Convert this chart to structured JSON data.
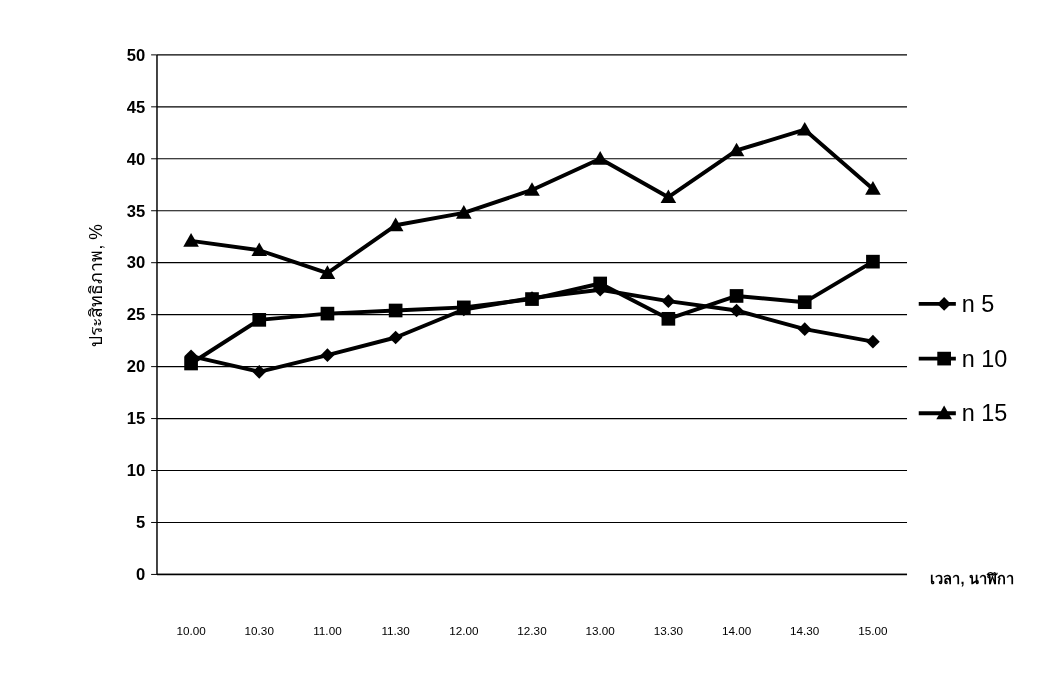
{
  "chart_data": {
    "type": "line",
    "xlabel": "เวลา, นาฬิกา",
    "ylabel": "ประสิทธิภาพ, %",
    "categories": [
      "10.00",
      "10.30",
      "11.00",
      "11.30",
      "12.00",
      "12.30",
      "13.00",
      "13.30",
      "14.00",
      "14.30",
      "15.00"
    ],
    "series": [
      {
        "name": "n  5",
        "color": "#000000",
        "marker": "diamond",
        "values": [
          21.0,
          19.5,
          21.1,
          22.8,
          25.5,
          26.6,
          27.4,
          26.3,
          25.4,
          23.6,
          22.4
        ]
      },
      {
        "name": "n 10",
        "color": "#000000",
        "marker": "square",
        "values": [
          20.3,
          24.5,
          25.1,
          25.4,
          25.7,
          26.5,
          28.0,
          24.6,
          26.8,
          26.2,
          30.1
        ]
      },
      {
        "name": "n 15",
        "color": "#000000",
        "marker": "triangle",
        "values": [
          32.1,
          31.2,
          29.0,
          33.6,
          34.8,
          37.0,
          40.0,
          36.3,
          40.8,
          42.8,
          37.1
        ]
      }
    ],
    "ylim": [
      0,
      50
    ],
    "yticks": [
      0,
      5,
      10,
      15,
      20,
      25,
      30,
      35,
      40,
      45,
      50
    ],
    "grid": "y",
    "legend": "right"
  }
}
